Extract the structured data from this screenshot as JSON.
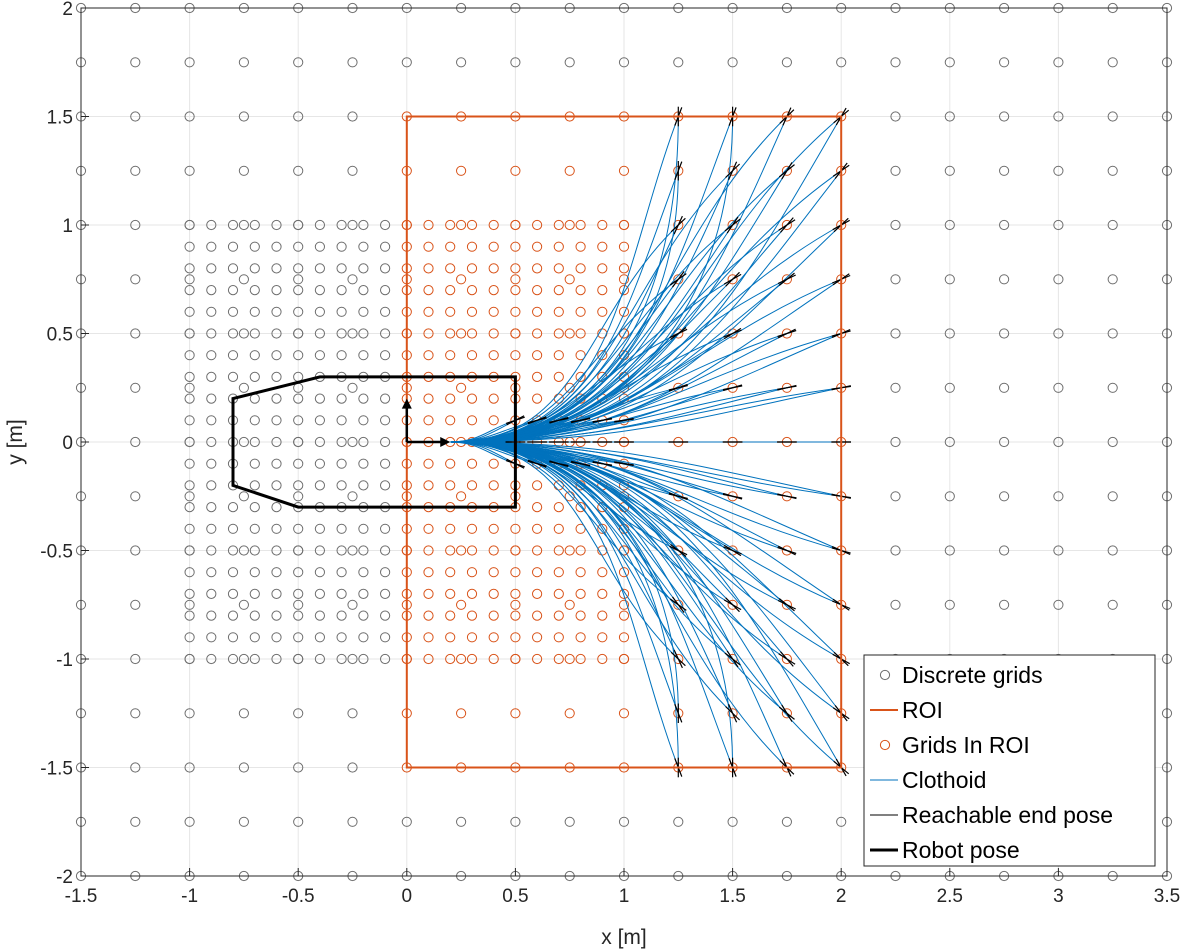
{
  "chart_data": {
    "type": "scatter",
    "title": "",
    "xlabel": "x [m]",
    "ylabel": "y [m]",
    "xlim": [
      -1.5,
      3.5
    ],
    "ylim": [
      -2,
      2
    ],
    "grid": true,
    "legend_position": "bottom-right",
    "xticks": [
      "-1.5",
      "-1",
      "-0.5",
      "0",
      "0.5",
      "1",
      "1.5",
      "2",
      "2.5",
      "3",
      "3.5"
    ],
    "yticks": [
      "-2",
      "-1.5",
      "-1",
      "-0.5",
      "0",
      "0.5",
      "1",
      "1.5",
      "2"
    ],
    "colors": {
      "discrete_grids": "#6e6e6e",
      "roi": "#d95319",
      "grids_in_roi": "#d95319",
      "clothoid": "#0072bd",
      "end_pose": "#000000",
      "robot_pose": "#000000",
      "grid_lines": "#e6e6e6"
    },
    "discrete_grids": {
      "coarse_step": 0.25,
      "coarse_x_range": [
        -1.5,
        3.5
      ],
      "coarse_y_range": [
        -2,
        2
      ],
      "fine_step": 0.1,
      "fine_x_range": [
        -1,
        1
      ],
      "fine_y_range": [
        -1,
        1
      ]
    },
    "roi": {
      "x": [
        0,
        2
      ],
      "y": [
        -1.5,
        1.5
      ]
    },
    "clothoid": {
      "start": [
        0.2,
        0
      ],
      "end_x": [
        1.25,
        1.5,
        1.75,
        2.0
      ],
      "end_y": [
        -1.5,
        -1.25,
        -1.0,
        -0.75,
        -0.5,
        -0.25,
        0,
        0.25,
        0.5,
        0.75,
        1.0,
        1.25,
        1.5
      ],
      "fine_end_x": [
        0.5,
        0.6,
        0.7,
        0.8,
        0.9,
        1.0
      ],
      "fine_end_y_limit": 0.1
    },
    "robot": {
      "position": [
        0,
        0
      ],
      "heading_deg": 0,
      "footprint": [
        [
          0.5,
          0.3
        ],
        [
          -0.4,
          0.3
        ],
        [
          -0.8,
          0.2
        ],
        [
          -0.8,
          -0.2
        ],
        [
          -0.5,
          -0.3
        ],
        [
          0.5,
          -0.3
        ]
      ]
    },
    "legend": [
      {
        "key": "discrete",
        "label": "Discrete grids"
      },
      {
        "key": "roi",
        "label": "ROI"
      },
      {
        "key": "inroi",
        "label": "Grids In ROI"
      },
      {
        "key": "clothoid",
        "label": "Clothoid"
      },
      {
        "key": "endpose",
        "label": "Reachable end pose"
      },
      {
        "key": "robot",
        "label": "Robot pose"
      }
    ]
  }
}
